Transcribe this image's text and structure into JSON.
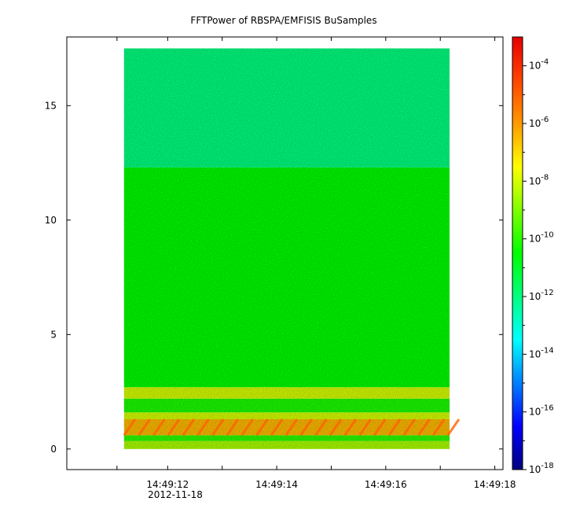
{
  "chart_data": {
    "type": "heatmap",
    "title": "FFTPower of RBSPA/EMFISIS  BuSamples",
    "xlabel": "",
    "ylabel": "",
    "x_ticks": [
      {
        "t": 11.07,
        "label": ""
      },
      {
        "t": 12,
        "label": "14:49:12"
      },
      {
        "t": 13,
        "label": ""
      },
      {
        "t": 14,
        "label": "14:49:14"
      },
      {
        "t": 15,
        "label": ""
      },
      {
        "t": 16,
        "label": "14:49:16"
      },
      {
        "t": 17,
        "label": ""
      },
      {
        "t": 18,
        "label": "14:49:18"
      }
    ],
    "x_date_label": "2012-11-18",
    "xlim_seconds": [
      10.15,
      18.15
    ],
    "data_x_range_seconds": [
      11.2,
      17.17
    ],
    "y_ticks": [
      0,
      5,
      10,
      15
    ],
    "ylim": [
      -0.9,
      18.0
    ],
    "data_y_range": [
      0,
      17.5
    ],
    "colorbar": {
      "scale": "log",
      "zlim": [
        1e-18,
        0.001
      ],
      "tick_exponents": [
        -18,
        -16,
        -14,
        -12,
        -10,
        -8,
        -6,
        -4
      ],
      "tick_base": "10",
      "colormap": [
        "#00007f",
        "#0000ff",
        "#007fff",
        "#00ffff",
        "#00ff80",
        "#00ff00",
        "#80ff00",
        "#ffff00",
        "#ff9900",
        "#ff4400",
        "#e60000"
      ]
    },
    "bands": [
      {
        "y_from": 0.0,
        "y_to": 0.35,
        "log_power": -8.5
      },
      {
        "y_from": 0.35,
        "y_to": 0.6,
        "log_power": -10.0
      },
      {
        "y_from": 0.6,
        "y_to": 1.3,
        "log_power": -6.5
      },
      {
        "y_from": 1.3,
        "y_to": 1.6,
        "log_power": -8.0
      },
      {
        "y_from": 1.6,
        "y_to": 2.2,
        "log_power": -10.2
      },
      {
        "y_from": 2.2,
        "y_to": 2.7,
        "log_power": -8.0
      },
      {
        "y_from": 2.7,
        "y_to": 12.3,
        "log_power": -10.5
      },
      {
        "y_from": 12.3,
        "y_to": 17.5,
        "log_power": -12.0
      }
    ]
  }
}
